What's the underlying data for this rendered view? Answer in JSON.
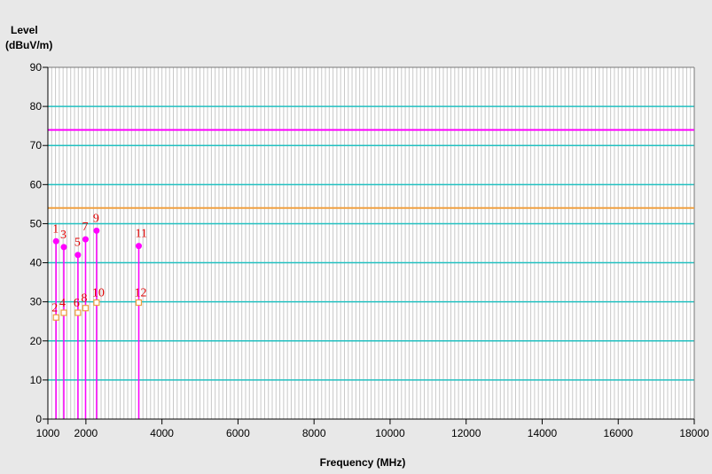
{
  "chart_data": {
    "type": "scatter",
    "ylabel_line1": "Level",
    "ylabel_line2": "(dBuV/m)",
    "xlabel": "Frequency (MHz)",
    "xlim": [
      1000,
      18000
    ],
    "ylim": [
      0,
      90
    ],
    "x_ticks": [
      1000,
      2000,
      4000,
      6000,
      8000,
      10000,
      12000,
      14000,
      16000,
      18000
    ],
    "x_tick_labels": [
      "1000",
      "2000",
      "4000",
      "6000",
      "8000",
      "10000",
      "12000",
      "14000",
      "16000",
      "18000"
    ],
    "y_ticks": [
      0,
      10,
      20,
      30,
      40,
      50,
      60,
      70,
      80,
      90
    ],
    "y_tick_labels": [
      "0",
      "10",
      "20",
      "30",
      "40",
      "50",
      "60",
      "70",
      "80",
      "90"
    ],
    "limit_lines": [
      {
        "value": 74,
        "color": "#ff00ff"
      },
      {
        "value": 54,
        "color": "#f0a040"
      }
    ],
    "gridline_color": "#20c0c0",
    "minor_grid_color": "#c8c8c8",
    "series": [
      {
        "marker": "filled-circle",
        "color": "#ff00ff",
        "points": [
          {
            "label": "1",
            "x": 1215,
            "y": 45.5
          },
          {
            "label": "3",
            "x": 1420,
            "y": 44.0
          },
          {
            "label": "5",
            "x": 1790,
            "y": 42.0
          },
          {
            "label": "7",
            "x": 1990,
            "y": 46.0
          },
          {
            "label": "9",
            "x": 2280,
            "y": 48.2
          },
          {
            "label": "11",
            "x": 3390,
            "y": 44.3
          }
        ]
      },
      {
        "marker": "open-square",
        "color": "#f0a040",
        "points": [
          {
            "label": "2",
            "x": 1215,
            "y": 26.0
          },
          {
            "label": "4",
            "x": 1420,
            "y": 27.2
          },
          {
            "label": "6",
            "x": 1790,
            "y": 27.2
          },
          {
            "label": "8",
            "x": 1990,
            "y": 28.4
          },
          {
            "label": "10",
            "x": 2280,
            "y": 29.8
          },
          {
            "label": "12",
            "x": 3390,
            "y": 29.8
          }
        ]
      }
    ]
  }
}
